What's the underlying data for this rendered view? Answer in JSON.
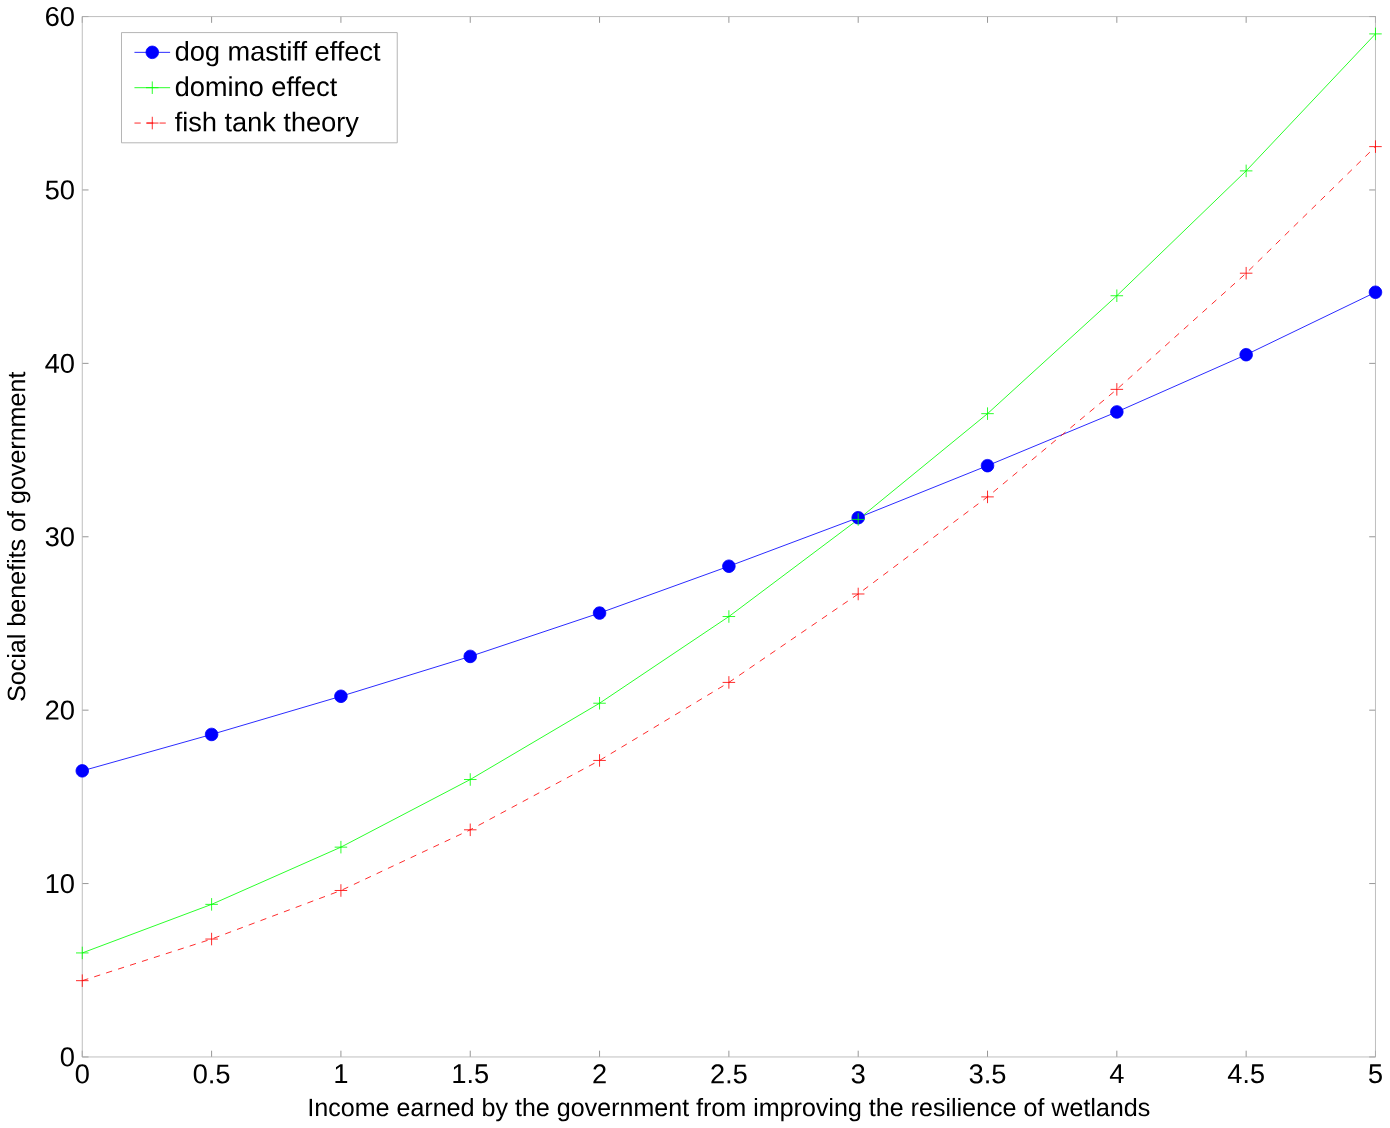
{
  "chart_data": {
    "type": "line",
    "xlabel": "Income earned by the government from improving the resilience of wetlands",
    "ylabel": "Social benefits of government",
    "x": [
      0,
      0.5,
      1,
      1.5,
      2,
      2.5,
      3,
      3.5,
      4,
      4.5,
      5
    ],
    "series": [
      {
        "name": "dog mastiff effect",
        "color": "#0000ff",
        "marker": "circle",
        "line_style": "solid",
        "values": [
          16.5,
          18.6,
          20.8,
          23.1,
          25.6,
          28.3,
          31.1,
          34.1,
          37.2,
          40.5,
          44.1
        ]
      },
      {
        "name": "domino effect",
        "color": "#00ff00",
        "marker": "cross",
        "line_style": "solid",
        "values": [
          6.0,
          8.8,
          12.1,
          16.0,
          20.4,
          25.4,
          31.0,
          37.1,
          43.9,
          51.1,
          59.0
        ]
      },
      {
        "name": "fish tank theory",
        "color": "#ff0000",
        "marker": "cross",
        "line_style": "dashed",
        "values": [
          4.4,
          6.8,
          9.6,
          13.1,
          17.1,
          21.6,
          26.7,
          32.3,
          38.5,
          45.2,
          52.5
        ]
      }
    ],
    "xlim": [
      0,
      5
    ],
    "ylim": [
      0,
      60
    ],
    "xticks": [
      0,
      0.5,
      1,
      1.5,
      2,
      2.5,
      3,
      3.5,
      4,
      4.5,
      5
    ],
    "yticks": [
      0,
      10,
      20,
      30,
      40,
      50,
      60
    ],
    "grid": false,
    "legend": "top left"
  }
}
